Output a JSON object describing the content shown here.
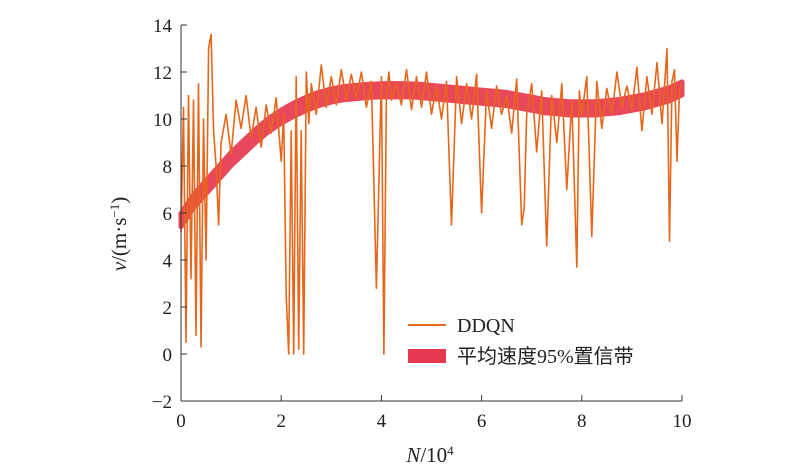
{
  "chart_data": {
    "type": "line",
    "xlabel": {
      "var": "N",
      "rest": "/10",
      "sup": "4"
    },
    "ylabel": {
      "var": "v",
      "rest": "/(m·s",
      "sup": "−1",
      "close": ")"
    },
    "xlim": [
      0,
      10
    ],
    "ylim": [
      -2,
      14
    ],
    "xticks": [
      0,
      2,
      4,
      6,
      8,
      10
    ],
    "xtick_labels": [
      "0",
      "2",
      "4",
      "6",
      "8",
      "10"
    ],
    "yticks": [
      -2,
      0,
      2,
      4,
      6,
      8,
      10,
      12,
      14
    ],
    "ytick_labels": [
      "−2",
      "0",
      "2",
      "4",
      "6",
      "8",
      "10",
      "12",
      "14"
    ],
    "grid": false,
    "legend_position": "lower-right",
    "series": [
      {
        "name": "DDQN",
        "style": "line",
        "color": "#e8661c",
        "x": [
          0.0,
          0.05,
          0.1,
          0.15,
          0.2,
          0.25,
          0.3,
          0.35,
          0.4,
          0.45,
          0.5,
          0.55,
          0.6,
          0.65,
          0.7,
          0.75,
          0.8,
          0.9,
          1.0,
          1.1,
          1.2,
          1.3,
          1.4,
          1.5,
          1.6,
          1.7,
          1.8,
          1.9,
          2.0,
          2.05,
          2.1,
          2.15,
          2.2,
          2.25,
          2.3,
          2.35,
          2.4,
          2.45,
          2.5,
          2.55,
          2.6,
          2.7,
          2.8,
          2.9,
          3.0,
          3.1,
          3.2,
          3.3,
          3.4,
          3.5,
          3.6,
          3.7,
          3.8,
          3.9,
          4.0,
          4.05,
          4.1,
          4.15,
          4.2,
          4.3,
          4.4,
          4.5,
          4.6,
          4.7,
          4.8,
          4.9,
          5.0,
          5.1,
          5.2,
          5.3,
          5.4,
          5.5,
          5.6,
          5.7,
          5.8,
          5.9,
          6.0,
          6.1,
          6.2,
          6.3,
          6.4,
          6.5,
          6.6,
          6.7,
          6.8,
          6.85,
          6.9,
          7.0,
          7.1,
          7.2,
          7.3,
          7.4,
          7.5,
          7.6,
          7.7,
          7.8,
          7.9,
          7.95,
          8.0,
          8.1,
          8.2,
          8.3,
          8.4,
          8.5,
          8.6,
          8.7,
          8.8,
          8.9,
          9.0,
          9.1,
          9.2,
          9.3,
          9.4,
          9.5,
          9.6,
          9.7,
          9.75,
          9.8,
          9.85,
          9.9,
          9.95,
          10.0
        ],
        "y": [
          5.2,
          10.5,
          0.5,
          11.0,
          3.2,
          10.8,
          0.8,
          11.5,
          0.3,
          10.0,
          4.0,
          13.0,
          13.6,
          9.5,
          8.0,
          5.5,
          9.0,
          10.2,
          8.5,
          10.8,
          9.6,
          11.0,
          9.2,
          10.5,
          8.8,
          10.6,
          9.4,
          10.9,
          8.2,
          10.2,
          2.5,
          0.0,
          9.5,
          0.0,
          11.8,
          0.2,
          9.5,
          0.0,
          12.0,
          9.8,
          11.5,
          10.2,
          12.3,
          10.5,
          11.8,
          10.6,
          12.1,
          10.8,
          11.9,
          10.9,
          12.0,
          10.5,
          11.6,
          2.8,
          11.8,
          0.0,
          11.0,
          12.0,
          10.8,
          11.5,
          10.6,
          12.1,
          10.4,
          11.8,
          10.5,
          12.0,
          10.2,
          11.4,
          10.0,
          11.6,
          5.5,
          11.8,
          9.8,
          11.5,
          10.0,
          11.9,
          6.0,
          11.2,
          9.6,
          11.4,
          10.2,
          11.0,
          9.4,
          11.7,
          5.5,
          6.2,
          10.2,
          11.5,
          8.6,
          11.2,
          4.6,
          11.0,
          9.0,
          11.5,
          7.0,
          10.8,
          3.7,
          11.2,
          10.2,
          11.8,
          5.0,
          11.6,
          9.6,
          11.3,
          10.2,
          12.0,
          10.5,
          11.4,
          10.4,
          12.2,
          9.5,
          11.8,
          10.2,
          12.4,
          9.8,
          13.0,
          4.8,
          11.6,
          12.1,
          8.2,
          11.2,
          11.5
        ]
      },
      {
        "name": "平均速度95%置信带",
        "style": "band",
        "color": "#e8384f",
        "x": [
          0.0,
          0.25,
          0.5,
          0.75,
          1.0,
          1.25,
          1.5,
          1.75,
          2.0,
          2.25,
          2.5,
          2.75,
          3.0,
          3.25,
          3.5,
          3.75,
          4.0,
          4.25,
          4.5,
          4.75,
          5.0,
          5.25,
          5.5,
          5.75,
          6.0,
          6.25,
          6.5,
          6.75,
          7.0,
          7.25,
          7.5,
          7.75,
          8.0,
          8.25,
          8.5,
          8.75,
          9.0,
          9.25,
          9.5,
          9.75,
          10.0
        ],
        "y": [
          5.7,
          6.5,
          7.1,
          7.7,
          8.3,
          8.8,
          9.3,
          9.75,
          10.1,
          10.4,
          10.65,
          10.85,
          11.0,
          11.1,
          11.15,
          11.2,
          11.22,
          11.23,
          11.22,
          11.2,
          11.15,
          11.1,
          11.05,
          11.0,
          10.95,
          10.9,
          10.85,
          10.75,
          10.65,
          10.55,
          10.5,
          10.45,
          10.45,
          10.45,
          10.5,
          10.55,
          10.65,
          10.75,
          10.9,
          11.05,
          11.3
        ],
        "half_width": 0.28
      }
    ]
  }
}
